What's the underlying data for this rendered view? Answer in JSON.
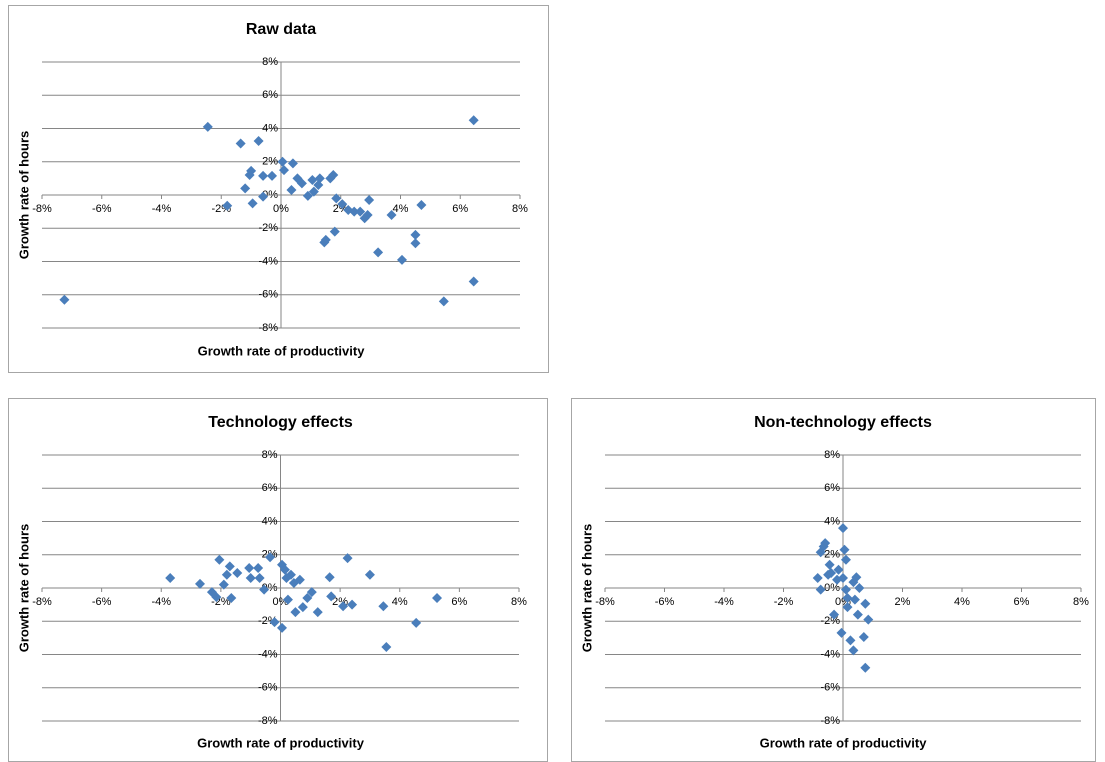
{
  "chart_data": [
    {
      "type": "scatter",
      "title": "Raw data",
      "x_label": "Growth rate  of productivity",
      "y_label": "Growth rate  of hours",
      "color": "#4a7ebb",
      "grid": true,
      "xlim": [
        -8,
        8
      ],
      "ylim": [
        -8,
        8
      ],
      "xticks": [
        {
          "value": -8,
          "label": "-8%"
        },
        {
          "value": -6,
          "label": "-6%"
        },
        {
          "value": -4,
          "label": "-4%"
        },
        {
          "value": -2,
          "label": "-2%"
        },
        {
          "value": 0,
          "label": "0%"
        },
        {
          "value": 2,
          "label": "2%"
        },
        {
          "value": 4,
          "label": "4%"
        },
        {
          "value": 6,
          "label": "6%"
        },
        {
          "value": 8,
          "label": "8%"
        }
      ],
      "yticks": [
        {
          "value": -8,
          "label": "-8%"
        },
        {
          "value": -6,
          "label": "-6%"
        },
        {
          "value": -4,
          "label": "-4%"
        },
        {
          "value": -2,
          "label": "-2%"
        },
        {
          "value": 0,
          "label": "0%"
        },
        {
          "value": 2,
          "label": "2%"
        },
        {
          "value": 4,
          "label": "4%"
        },
        {
          "value": 6,
          "label": "6%"
        },
        {
          "value": 8,
          "label": "8%"
        }
      ],
      "x": [
        -7.25,
        -2.45,
        -1.35,
        -0.75,
        -1.8,
        -1.2,
        -1.05,
        -1.0,
        -0.95,
        -0.6,
        -0.6,
        -0.3,
        0.05,
        0.1,
        0.4,
        0.35,
        0.55,
        0.7,
        0.9,
        1.05,
        1.1,
        1.25,
        1.3,
        1.45,
        1.5,
        1.65,
        1.75,
        1.8,
        1.85,
        2.05,
        2.25,
        2.45,
        2.65,
        2.8,
        2.95,
        2.9,
        3.25,
        3.7,
        4.05,
        4.5,
        4.5,
        4.7,
        5.45,
        6.45,
        6.45
      ],
      "values": [
        -6.3,
        4.1,
        3.1,
        3.25,
        -0.65,
        0.4,
        1.2,
        1.45,
        -0.5,
        -0.1,
        1.15,
        1.15,
        2.0,
        1.5,
        1.9,
        0.3,
        1.0,
        0.7,
        -0.05,
        0.9,
        0.2,
        0.6,
        1.0,
        -2.85,
        -2.7,
        1.0,
        1.2,
        -2.2,
        -0.2,
        -0.55,
        -0.9,
        -1.0,
        -1.0,
        -1.4,
        -0.3,
        -1.2,
        -3.45,
        -1.2,
        -3.9,
        -2.4,
        -2.9,
        -0.6,
        -6.4,
        4.5,
        -5.2
      ]
    },
    {
      "type": "scatter",
      "title": "Technology effects",
      "x_label": "Growth rate  of productivity",
      "y_label": "Growth rate  of hours",
      "color": "#4a7ebb",
      "grid": true,
      "xlim": [
        -8,
        8
      ],
      "ylim": [
        -8,
        8
      ],
      "xticks": [
        {
          "value": -8,
          "label": "-8%"
        },
        {
          "value": -6,
          "label": "-6%"
        },
        {
          "value": -4,
          "label": "-4%"
        },
        {
          "value": -2,
          "label": "-2%"
        },
        {
          "value": 0,
          "label": "0%"
        },
        {
          "value": 2,
          "label": "2%"
        },
        {
          "value": 4,
          "label": "4%"
        },
        {
          "value": 6,
          "label": "6%"
        },
        {
          "value": 8,
          "label": "8%"
        }
      ],
      "yticks": [
        {
          "value": -8,
          "label": "-8%"
        },
        {
          "value": -6,
          "label": "-6%"
        },
        {
          "value": -4,
          "label": "-4%"
        },
        {
          "value": -2,
          "label": "-2%"
        },
        {
          "value": 0,
          "label": "0%"
        },
        {
          "value": 2,
          "label": "2%"
        },
        {
          "value": 4,
          "label": "4%"
        },
        {
          "value": 6,
          "label": "6%"
        },
        {
          "value": 8,
          "label": "8%"
        }
      ],
      "x": [
        -3.7,
        -2.7,
        -2.3,
        -2.15,
        -2.05,
        -1.9,
        -1.8,
        -1.65,
        -1.7,
        -1.45,
        -1.05,
        -1.0,
        -0.75,
        -0.7,
        -0.55,
        -0.35,
        -0.2,
        0.05,
        0.05,
        0.15,
        0.2,
        0.25,
        0.35,
        0.45,
        0.5,
        0.65,
        0.75,
        0.9,
        1.05,
        1.25,
        1.65,
        1.7,
        2.1,
        2.25,
        2.4,
        3.0,
        3.45,
        3.55,
        4.55,
        5.25
      ],
      "values": [
        0.6,
        0.25,
        -0.25,
        -0.55,
        1.7,
        0.2,
        0.8,
        -0.6,
        1.3,
        0.9,
        1.2,
        0.6,
        1.2,
        0.6,
        -0.1,
        1.85,
        -2.05,
        -2.4,
        1.4,
        1.1,
        0.6,
        -0.7,
        0.8,
        0.3,
        -1.45,
        0.5,
        -1.15,
        -0.6,
        -0.25,
        -1.45,
        0.65,
        -0.5,
        -1.1,
        1.8,
        -1.0,
        0.8,
        -1.1,
        -3.55,
        -2.1,
        -0.6
      ]
    },
    {
      "type": "scatter",
      "title": "Non-technology effects",
      "x_label": "Growth rate  of productivity",
      "y_label": "Growth rate  of hours",
      "color": "#4a7ebb",
      "grid": true,
      "xlim": [
        -8,
        8
      ],
      "ylim": [
        -8,
        8
      ],
      "xticks": [
        {
          "value": -8,
          "label": "-8%"
        },
        {
          "value": -6,
          "label": "-6%"
        },
        {
          "value": -4,
          "label": "-4%"
        },
        {
          "value": -2,
          "label": "-2%"
        },
        {
          "value": 0,
          "label": "0%"
        },
        {
          "value": 2,
          "label": "2%"
        },
        {
          "value": 4,
          "label": "4%"
        },
        {
          "value": 6,
          "label": "6%"
        },
        {
          "value": 8,
          "label": "8%"
        }
      ],
      "yticks": [
        {
          "value": -8,
          "label": "-8%"
        },
        {
          "value": -6,
          "label": "-6%"
        },
        {
          "value": -4,
          "label": "-4%"
        },
        {
          "value": -2,
          "label": "-2%"
        },
        {
          "value": 0,
          "label": "0%"
        },
        {
          "value": 2,
          "label": "2%"
        },
        {
          "value": 4,
          "label": "4%"
        },
        {
          "value": 6,
          "label": "6%"
        },
        {
          "value": 8,
          "label": "8%"
        }
      ],
      "x": [
        -0.65,
        -0.6,
        -0.75,
        -0.85,
        -0.75,
        -0.5,
        -0.45,
        -0.4,
        -0.3,
        -0.2,
        -0.15,
        -0.05,
        0.0,
        0.05,
        0.1,
        0.0,
        0.1,
        0.15,
        0.15,
        0.25,
        0.35,
        0.35,
        0.4,
        0.45,
        0.5,
        0.55,
        0.7,
        0.75,
        0.85,
        0.75
      ],
      "values": [
        2.5,
        2.7,
        2.15,
        0.6,
        -0.1,
        0.8,
        1.4,
        0.9,
        -1.6,
        0.5,
        1.1,
        -2.7,
        3.6,
        2.3,
        1.7,
        0.6,
        -0.1,
        -0.6,
        -1.15,
        -3.15,
        -3.75,
        0.35,
        -0.7,
        0.65,
        -1.6,
        0.0,
        -2.95,
        -0.95,
        -1.9,
        -4.8
      ]
    }
  ]
}
